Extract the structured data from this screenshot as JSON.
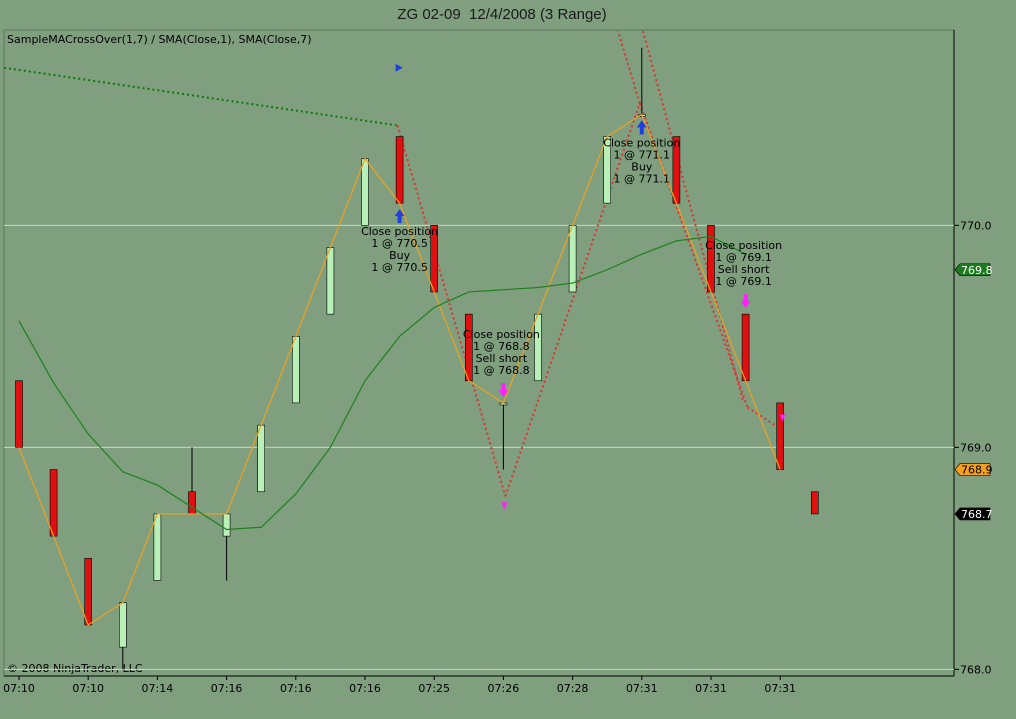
{
  "colors": {
    "background": "#7f9f7f",
    "up_bar": "#b8f0b8",
    "down_bar": "#e01010",
    "wick": "#000000",
    "sma_fast": "#f0a020",
    "sma_slow": "#208020",
    "gridline": "#c8d8c8",
    "buy_arrow": "#1f3fe0",
    "sell_arrow": "#ff20ff",
    "trade_line_short": "#e03030",
    "trade_line_long": "#0a7a0a",
    "badge_sma_slow": "#1e7a1e",
    "badge_sma_fast": "#f5a020",
    "badge_last": "#000000"
  },
  "chart_data": {
    "type": "candlestick",
    "title": "ZG 02-09  12/4/2008 (3 Range)",
    "indicator_label": "SampleMACrossOver(1,7) / SMA(Close,1), SMA(Close,7)",
    "copyright": "© 2008 NinjaTrader, LLC",
    "ylim": [
      767.97,
      770.88
    ],
    "ytick_values": [
      768.0,
      769.0,
      770.0
    ],
    "ytick_labels": [
      "768.0",
      "769.0",
      "770.0"
    ],
    "x_labels": [
      "07:10",
      "07:10",
      "07:14",
      "07:16",
      "07:16",
      "07:16",
      "07:25",
      "07:26",
      "07:28",
      "07:31",
      "07:31",
      "07:31"
    ],
    "bars": [
      {
        "o": 769.3,
        "h": 769.3,
        "l": 769.0,
        "c": 769.0
      },
      {
        "o": 768.9,
        "h": 768.9,
        "l": 768.6,
        "c": 768.6
      },
      {
        "o": 768.5,
        "h": 768.5,
        "l": 768.2,
        "c": 768.2
      },
      {
        "o": 768.1,
        "h": 768.3,
        "l": 768.0,
        "c": 768.3
      },
      {
        "o": 768.4,
        "h": 768.7,
        "l": 768.4,
        "c": 768.7
      },
      {
        "o": 768.8,
        "h": 769.0,
        "l": 768.7,
        "c": 768.7
      },
      {
        "o": 768.6,
        "h": 768.7,
        "l": 768.4,
        "c": 768.7
      },
      {
        "o": 768.8,
        "h": 769.1,
        "l": 768.8,
        "c": 769.1
      },
      {
        "o": 769.2,
        "h": 769.5,
        "l": 769.2,
        "c": 769.5
      },
      {
        "o": 769.6,
        "h": 769.9,
        "l": 769.6,
        "c": 769.9
      },
      {
        "o": 770.0,
        "h": 770.3,
        "l": 770.0,
        "c": 770.3
      },
      {
        "o": 770.4,
        "h": 770.4,
        "l": 770.1,
        "c": 770.1
      },
      {
        "o": 770.0,
        "h": 770.0,
        "l": 769.7,
        "c": 769.7
      },
      {
        "o": 769.6,
        "h": 769.6,
        "l": 769.3,
        "c": 769.3
      },
      {
        "o": 769.2,
        "h": 769.2,
        "l": 768.9,
        "c": 769.2
      },
      {
        "o": 769.3,
        "h": 769.6,
        "l": 769.3,
        "c": 769.6
      },
      {
        "o": 769.7,
        "h": 770.0,
        "l": 769.7,
        "c": 770.0
      },
      {
        "o": 770.1,
        "h": 770.4,
        "l": 770.1,
        "c": 770.4
      },
      {
        "o": 770.5,
        "h": 770.8,
        "l": 770.5,
        "c": 770.5
      },
      {
        "o": 770.4,
        "h": 770.4,
        "l": 770.1,
        "c": 770.1
      },
      {
        "o": 770.0,
        "h": 770.0,
        "l": 769.7,
        "c": 769.7
      },
      {
        "o": 769.6,
        "h": 769.6,
        "l": 769.3,
        "c": 769.3
      },
      {
        "o": 769.2,
        "h": 769.2,
        "l": 768.9,
        "c": 768.9
      },
      {
        "o": 768.8,
        "h": 768.8,
        "l": 768.7,
        "c": 768.7
      }
    ],
    "series": [
      {
        "values": [
          769.0,
          768.6,
          768.2,
          768.3,
          768.7,
          768.7,
          768.7,
          769.1,
          769.5,
          769.9,
          770.3,
          770.1,
          769.7,
          769.3,
          769.2,
          769.6,
          770.0,
          770.4,
          770.5,
          770.1,
          769.7,
          769.3,
          768.9,
          null
        ]
      },
      {
        "values": [
          769.57,
          769.29,
          769.06,
          768.89,
          768.83,
          768.73,
          768.63,
          768.64,
          768.79,
          769.0,
          769.3,
          769.5,
          769.63,
          769.7,
          769.71,
          769.72,
          769.74,
          769.8,
          769.87,
          769.93,
          769.95,
          769.87,
          null,
          null
        ]
      }
    ],
    "trades": [
      {
        "bar": 11,
        "direction": "long",
        "label_lines": [
          "Close position",
          "1 @ 770.5",
          "Buy",
          "1 @ 770.5"
        ]
      },
      {
        "bar": 14,
        "direction": "short",
        "label_lines": [
          "Close position",
          "1 @ 768.8",
          "Sell short",
          "1 @ 768.8"
        ]
      },
      {
        "bar": 18,
        "direction": "long",
        "label_lines": [
          "Close position",
          "1 @ 771.1",
          "Buy",
          "1 @ 771.1"
        ]
      },
      {
        "bar": 21,
        "direction": "short",
        "label_lines": [
          "Close position",
          "1 @ 769.1",
          "Sell short",
          "1 @ 769.1"
        ]
      }
    ],
    "price_badges": [
      {
        "value": 769.8,
        "label": "769.8"
      },
      {
        "value": 768.9,
        "label": "768.9"
      },
      {
        "value": 768.7,
        "label": "768.7"
      }
    ]
  }
}
